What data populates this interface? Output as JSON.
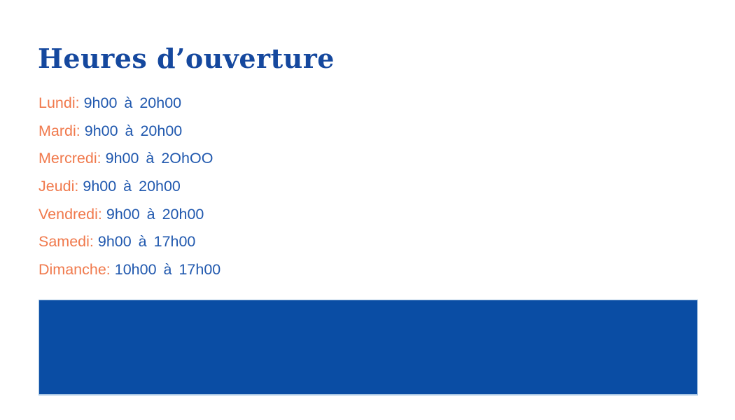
{
  "page": {
    "background_color": "#ffffff"
  },
  "title": {
    "text": "Heures d’ouverture",
    "color": "#15489e"
  },
  "hours": {
    "label_color": "#f0794c",
    "time_color": "#2058ae",
    "items": [
      {
        "day": "Lundi:",
        "time": "9h00 à 20h00"
      },
      {
        "day": "Mardi:",
        "time": "9h00 à 20h00"
      },
      {
        "day": "Mercredi:",
        "time": "9h00 à 2OhOO"
      },
      {
        "day": "Jeudi:",
        "time": "9h00 à 20h00"
      },
      {
        "day": "Vendredi:",
        "time": "9h00 à 20h00"
      },
      {
        "day": "Samedi:",
        "time": "9h00 à 17h00"
      },
      {
        "day": "Dimanche:",
        "time": "10h00 à 17h00"
      }
    ]
  },
  "footer_block": {
    "fill_color": "#0a4da4",
    "edge_color": "#a9c6e3"
  }
}
